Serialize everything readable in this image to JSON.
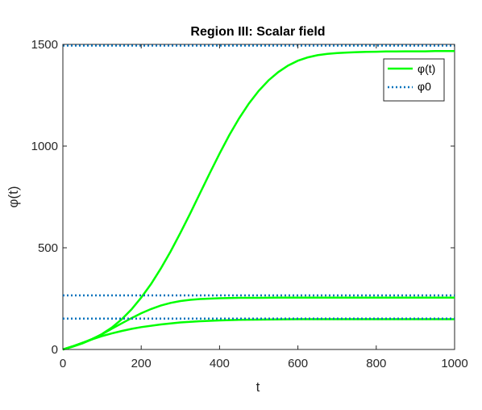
{
  "chart_data": {
    "type": "line",
    "title": "Region III: Scalar field",
    "xlabel": "t",
    "ylabel": "φ(t)",
    "xlim": [
      0,
      1000
    ],
    "ylim": [
      0,
      1500
    ],
    "xticks": [
      0,
      200,
      400,
      600,
      800,
      1000
    ],
    "yticks": [
      0,
      500,
      1000,
      1500
    ],
    "grid": false,
    "legend_position": "top-right",
    "legend": [
      "φ(t)",
      "φ0"
    ],
    "colors": {
      "phi": "#00ff00",
      "phi0": "#0072bd"
    },
    "series": [
      {
        "name": "φ(t)",
        "style": "solid",
        "x": [
          0,
          25,
          50,
          75,
          100,
          125,
          150,
          175,
          200,
          225,
          250,
          275,
          300,
          325,
          350,
          375,
          400,
          425,
          450,
          475,
          500,
          525,
          550,
          575,
          600,
          625,
          650,
          675,
          700,
          725,
          750,
          775,
          800,
          825,
          850,
          875,
          900,
          925,
          950,
          975,
          1000
        ],
        "values": [
          0,
          14,
          30,
          50,
          76,
          108,
          148,
          197,
          255,
          322,
          398,
          482,
          573,
          669,
          768,
          867,
          963,
          1054,
          1137,
          1210,
          1272,
          1323,
          1364,
          1396,
          1420,
          1436,
          1447,
          1453,
          1457,
          1460,
          1462,
          1463,
          1464,
          1465,
          1465,
          1466,
          1466,
          1466,
          1467,
          1467,
          1467
        ]
      },
      {
        "style": "solid",
        "x": [
          0,
          25,
          50,
          75,
          100,
          125,
          150,
          175,
          200,
          225,
          250,
          275,
          300,
          325,
          350,
          375,
          400,
          450,
          500,
          550,
          600,
          700,
          800,
          900,
          1000
        ],
        "values": [
          0,
          15,
          32,
          52,
          75,
          102,
          128,
          154,
          178,
          199,
          216,
          229,
          238,
          244,
          248,
          250,
          252,
          254,
          254,
          255,
          255,
          255,
          255,
          255,
          255
        ]
      },
      {
        "style": "solid",
        "x": [
          0,
          25,
          50,
          75,
          100,
          125,
          150,
          175,
          200,
          250,
          300,
          350,
          400,
          450,
          500,
          550,
          600,
          700,
          800,
          900,
          1000
        ],
        "values": [
          0,
          16,
          33,
          50,
          66,
          79,
          91,
          101,
          110,
          123,
          133,
          139,
          143,
          146,
          147,
          148,
          149,
          149,
          149,
          149,
          149
        ]
      },
      {
        "name": "φ0",
        "style": "dotted",
        "x": [
          0,
          1000
        ],
        "values": [
          1494,
          1494
        ]
      },
      {
        "style": "dotted",
        "x": [
          0,
          1000
        ],
        "values": [
          266,
          266
        ]
      },
      {
        "style": "dotted",
        "x": [
          0,
          1000
        ],
        "values": [
          152,
          152
        ]
      }
    ]
  }
}
